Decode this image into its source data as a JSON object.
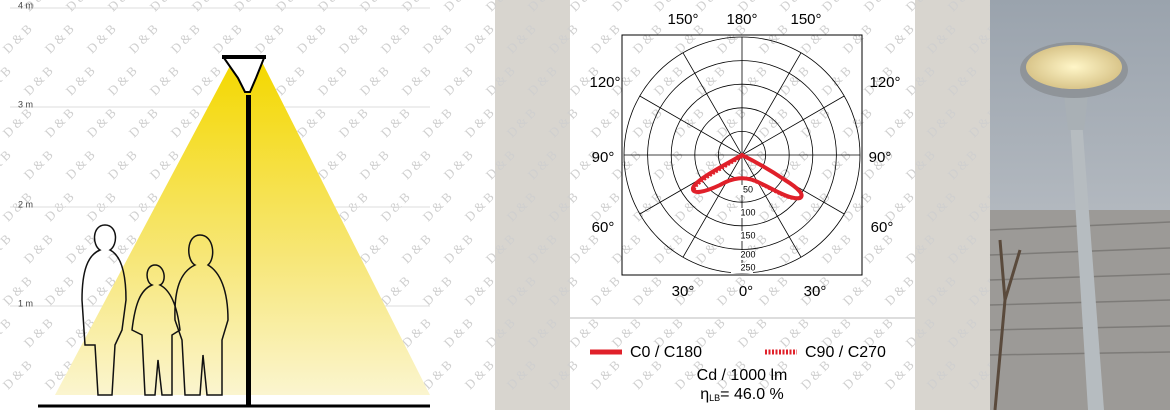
{
  "left_panel": {
    "height_labels": [
      "4 m",
      "3 m",
      "2 m",
      "1 m"
    ]
  },
  "polar": {
    "angle_labels": [
      "150°",
      "180°",
      "150°",
      "120°",
      "120°",
      "90°",
      "90°",
      "60°",
      "60°",
      "30°",
      "0°",
      "30°"
    ],
    "radial_labels": [
      "50",
      "100",
      "150",
      "200",
      "250"
    ]
  },
  "legend": {
    "items": [
      "C0 / C180",
      "C90 / C270"
    ],
    "units": "Cd / 1000 lm",
    "efficiency_symbol": "η",
    "efficiency_subscript": "LB",
    "efficiency_value": "= 46.0 %"
  },
  "watermark": "D & B"
}
